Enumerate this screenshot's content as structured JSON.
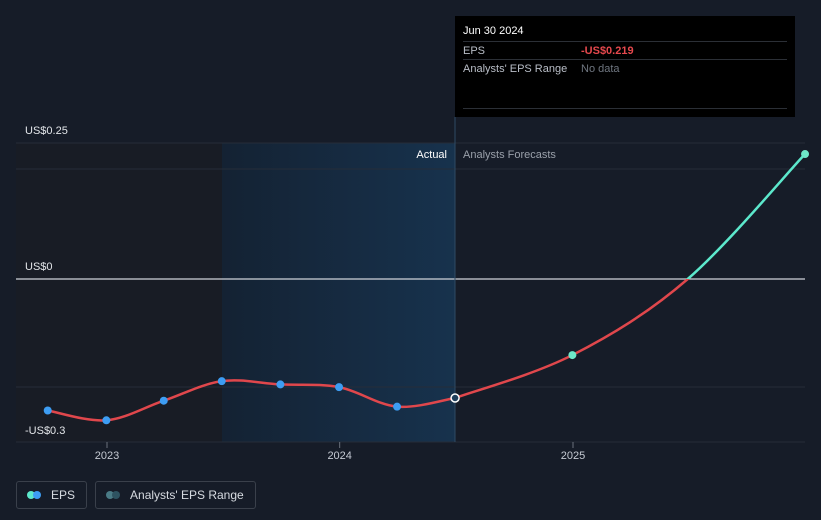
{
  "chart_data": {
    "type": "line",
    "y_axis_labels": [
      "US$0.25",
      "US$0",
      "-US$0.3"
    ],
    "x_ticks": [
      "2023",
      "2024",
      "2025"
    ],
    "region_labels": {
      "actual": "Actual",
      "forecast": "Analysts Forecasts"
    },
    "series": [
      {
        "name": "EPS",
        "kind": "actual",
        "points": [
          {
            "x": "2022-09-30",
            "y": -0.242
          },
          {
            "x": "2022-12-31",
            "y": -0.26
          },
          {
            "x": "2023-03-31",
            "y": -0.224
          },
          {
            "x": "2023-06-30",
            "y": -0.188
          },
          {
            "x": "2023-09-30",
            "y": -0.194
          },
          {
            "x": "2023-12-31",
            "y": -0.199
          },
          {
            "x": "2024-03-31",
            "y": -0.235
          },
          {
            "x": "2024-06-30",
            "y": -0.219
          }
        ]
      },
      {
        "name": "EPS",
        "kind": "forecast",
        "points": [
          {
            "x": "2024-06-30",
            "y": -0.219
          },
          {
            "x": "2024-12-31",
            "y": -0.14
          },
          {
            "x": "2025-06-30",
            "y": 0.0
          },
          {
            "x": "2025-12-31",
            "y": 0.23
          }
        ]
      }
    ],
    "ylim": [
      -0.3,
      0.25
    ],
    "colors": {
      "eps_negative": "#e0474c",
      "eps_positive": "#5ce8cc",
      "eps_dot": "#3d9df3",
      "forecast_dot": "#6ee7c8",
      "actual_band": "#17304a",
      "past_band": "#181c25",
      "zero_line": "#cfd3d9"
    }
  },
  "tooltip": {
    "date": "Jun 30 2024",
    "rows": [
      {
        "label": "EPS",
        "value": "-US$0.219"
      },
      {
        "label": "Analysts' EPS Range",
        "value": "No data"
      }
    ]
  },
  "legend": {
    "items": [
      {
        "label": "EPS",
        "colors": [
          "#5ce8cc",
          "#3d9df3"
        ]
      },
      {
        "label": "Analysts' EPS Range",
        "colors": [
          "#4a7b86",
          "#2e5361"
        ]
      }
    ]
  }
}
